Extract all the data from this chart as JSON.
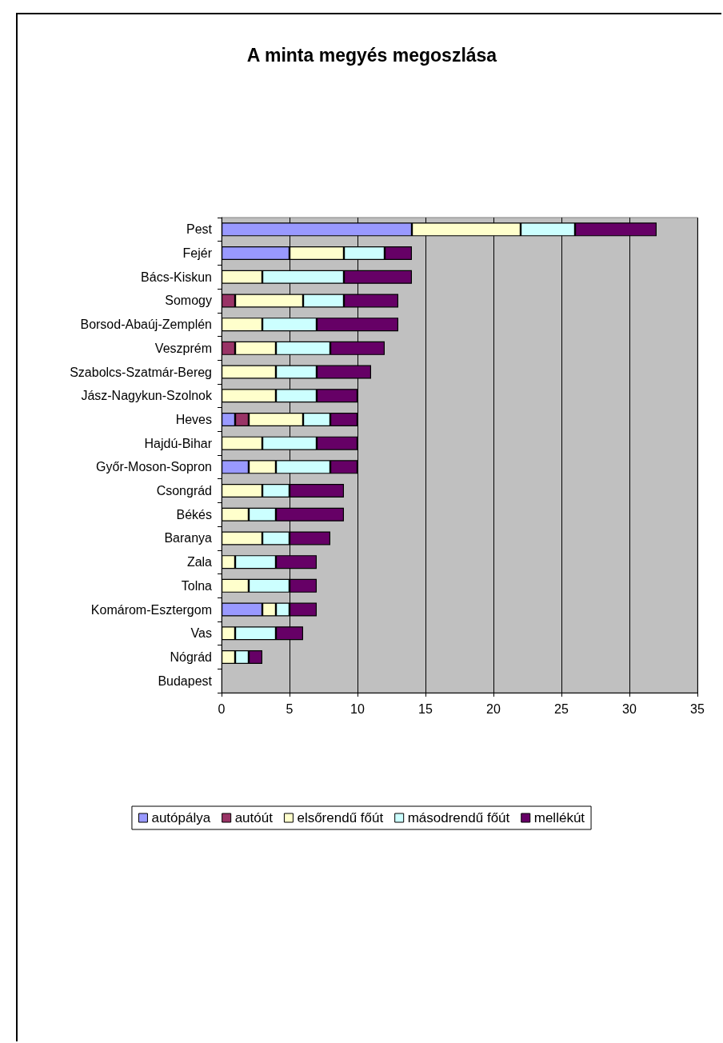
{
  "chart_data": {
    "type": "bar",
    "orientation": "horizontal",
    "stacked": true,
    "title": "A minta megyés megoszlása",
    "categories": [
      "Pest",
      "Fejér",
      "Bács-Kiskun",
      "Somogy",
      "Borsod-Abaúj-Zemplén",
      "Veszprém",
      "Szabolcs-Szatmár-Bereg",
      "Jász-Nagykun-Szolnok",
      "Heves",
      "Hajdú-Bihar",
      "Győr-Moson-Sopron",
      "Csongrád",
      "Békés",
      "Baranya",
      "Zala",
      "Tolna",
      "Komárom-Esztergom",
      "Vas",
      "Nógrád",
      "Budapest"
    ],
    "series": [
      {
        "name": "autópálya",
        "color": "#9999ff",
        "values": [
          14,
          5,
          0,
          0,
          0,
          0,
          0,
          0,
          1,
          0,
          2,
          0,
          0,
          0,
          0,
          0,
          3,
          0,
          0,
          0
        ]
      },
      {
        "name": "autóút",
        "color": "#993366",
        "values": [
          0,
          0,
          0,
          1,
          0,
          1,
          0,
          0,
          1,
          0,
          0,
          0,
          0,
          0,
          0,
          0,
          0,
          0,
          0,
          0
        ]
      },
      {
        "name": "elsőrendű főút",
        "color": "#ffffcc",
        "values": [
          8,
          4,
          3,
          5,
          3,
          3,
          4,
          4,
          4,
          3,
          2,
          3,
          2,
          3,
          1,
          2,
          1,
          1,
          1,
          0
        ]
      },
      {
        "name": "másodrendű főút",
        "color": "#ccffff",
        "values": [
          4,
          3,
          6,
          3,
          4,
          4,
          3,
          3,
          2,
          4,
          4,
          2,
          2,
          2,
          3,
          3,
          1,
          3,
          1,
          0
        ]
      },
      {
        "name": "mellékút",
        "color": "#660066",
        "values": [
          6,
          2,
          5,
          4,
          6,
          4,
          4,
          3,
          2,
          3,
          2,
          4,
          5,
          3,
          3,
          2,
          2,
          2,
          1,
          0
        ]
      }
    ],
    "xlim": [
      0,
      35
    ],
    "xticks": [
      0,
      5,
      10,
      15,
      20,
      25,
      30,
      35
    ],
    "grid": "x",
    "legend": "bottom"
  }
}
